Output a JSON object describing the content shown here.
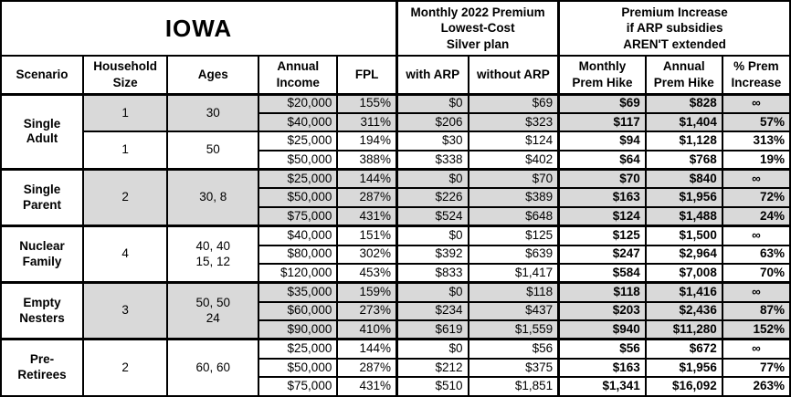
{
  "chart_data": {
    "type": "table",
    "title": "IOWA",
    "column_groups": {
      "premium": "Monthly 2022 Premium\nLowest-Cost\nSilver plan",
      "increase": "Premium Increase\nif ARP subsidies\nAREN'T extended"
    },
    "columns": [
      "Scenario",
      "Household\nSize",
      "Ages",
      "Annual\nIncome",
      "FPL",
      "with ARP",
      "without ARP",
      "Monthly\nPrem Hike",
      "Annual\nPrem Hike",
      "% Prem\nIncrease"
    ],
    "sections": [
      {
        "scenario": "Single\nAdult",
        "subgroups": [
          {
            "household_size": "1",
            "ages": "30",
            "shaded": true,
            "rows": [
              {
                "income": "$20,000",
                "fpl": "155%",
                "with_arp": "$0",
                "without_arp": "$69",
                "monthly_hike": "$69",
                "annual_hike": "$828",
                "pct_increase": "∞"
              },
              {
                "income": "$40,000",
                "fpl": "311%",
                "with_arp": "$206",
                "without_arp": "$323",
                "monthly_hike": "$117",
                "annual_hike": "$1,404",
                "pct_increase": "57%"
              }
            ]
          },
          {
            "household_size": "1",
            "ages": "50",
            "shaded": false,
            "rows": [
              {
                "income": "$25,000",
                "fpl": "194%",
                "with_arp": "$30",
                "without_arp": "$124",
                "monthly_hike": "$94",
                "annual_hike": "$1,128",
                "pct_increase": "313%"
              },
              {
                "income": "$50,000",
                "fpl": "388%",
                "with_arp": "$338",
                "without_arp": "$402",
                "monthly_hike": "$64",
                "annual_hike": "$768",
                "pct_increase": "19%"
              }
            ]
          }
        ]
      },
      {
        "scenario": "Single\nParent",
        "subgroups": [
          {
            "household_size": "2",
            "ages": "30, 8",
            "shaded": true,
            "rows": [
              {
                "income": "$25,000",
                "fpl": "144%",
                "with_arp": "$0",
                "without_arp": "$70",
                "monthly_hike": "$70",
                "annual_hike": "$840",
                "pct_increase": "∞"
              },
              {
                "income": "$50,000",
                "fpl": "287%",
                "with_arp": "$226",
                "without_arp": "$389",
                "monthly_hike": "$163",
                "annual_hike": "$1,956",
                "pct_increase": "72%"
              },
              {
                "income": "$75,000",
                "fpl": "431%",
                "with_arp": "$524",
                "without_arp": "$648",
                "monthly_hike": "$124",
                "annual_hike": "$1,488",
                "pct_increase": "24%"
              }
            ]
          }
        ]
      },
      {
        "scenario": "Nuclear\nFamily",
        "subgroups": [
          {
            "household_size": "4",
            "ages": "40, 40\n15, 12",
            "shaded": false,
            "rows": [
              {
                "income": "$40,000",
                "fpl": "151%",
                "with_arp": "$0",
                "without_arp": "$125",
                "monthly_hike": "$125",
                "annual_hike": "$1,500",
                "pct_increase": "∞"
              },
              {
                "income": "$80,000",
                "fpl": "302%",
                "with_arp": "$392",
                "without_arp": "$639",
                "monthly_hike": "$247",
                "annual_hike": "$2,964",
                "pct_increase": "63%"
              },
              {
                "income": "$120,000",
                "fpl": "453%",
                "with_arp": "$833",
                "without_arp": "$1,417",
                "monthly_hike": "$584",
                "annual_hike": "$7,008",
                "pct_increase": "70%"
              }
            ]
          }
        ]
      },
      {
        "scenario": "Empty\nNesters",
        "subgroups": [
          {
            "household_size": "3",
            "ages": "50, 50\n24",
            "shaded": true,
            "rows": [
              {
                "income": "$35,000",
                "fpl": "159%",
                "with_arp": "$0",
                "without_arp": "$118",
                "monthly_hike": "$118",
                "annual_hike": "$1,416",
                "pct_increase": "∞"
              },
              {
                "income": "$60,000",
                "fpl": "273%",
                "with_arp": "$234",
                "without_arp": "$437",
                "monthly_hike": "$203",
                "annual_hike": "$2,436",
                "pct_increase": "87%"
              },
              {
                "income": "$90,000",
                "fpl": "410%",
                "with_arp": "$619",
                "without_arp": "$1,559",
                "monthly_hike": "$940",
                "annual_hike": "$11,280",
                "pct_increase": "152%"
              }
            ]
          }
        ]
      },
      {
        "scenario": "Pre-\nRetirees",
        "subgroups": [
          {
            "household_size": "2",
            "ages": "60, 60",
            "shaded": false,
            "rows": [
              {
                "income": "$25,000",
                "fpl": "144%",
                "with_arp": "$0",
                "without_arp": "$56",
                "monthly_hike": "$56",
                "annual_hike": "$672",
                "pct_increase": "∞"
              },
              {
                "income": "$50,000",
                "fpl": "287%",
                "with_arp": "$212",
                "without_arp": "$375",
                "monthly_hike": "$163",
                "annual_hike": "$1,956",
                "pct_increase": "77%"
              },
              {
                "income": "$75,000",
                "fpl": "431%",
                "with_arp": "$510",
                "without_arp": "$1,851",
                "monthly_hike": "$1,341",
                "annual_hike": "$16,092",
                "pct_increase": "263%"
              }
            ]
          }
        ]
      }
    ],
    "colors": {
      "shaded_row_bg": "#d9d9d9",
      "border": "#000000",
      "background": "#ffffff",
      "text": "#000000"
    }
  }
}
